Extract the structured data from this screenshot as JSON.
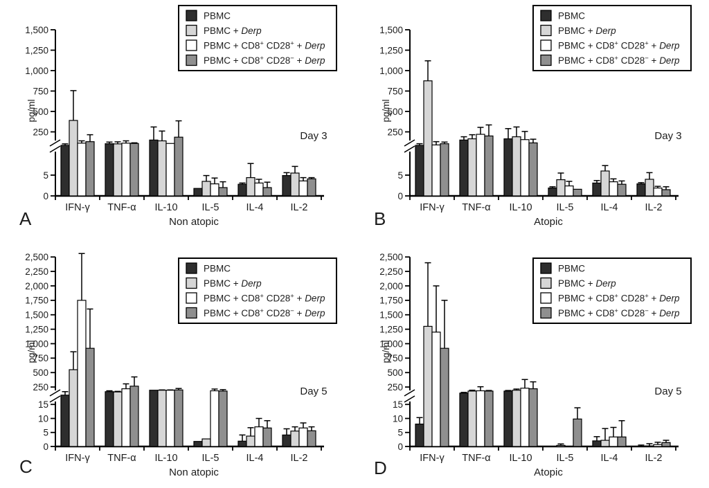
{
  "figure": {
    "background": "#ffffff",
    "bar_stroke": "#000000",
    "series_colors": [
      "#2e2e2e",
      "#d6d6d6",
      "#ffffff",
      "#8f8f8f"
    ],
    "legend": {
      "entries": [
        {
          "label": "PBMC",
          "parts": [
            {
              "text": "PBMC"
            }
          ]
        },
        {
          "label": "PBMC + Derp",
          "parts": [
            {
              "text": "PBMC + "
            },
            {
              "text": "Derp",
              "italic": true
            }
          ]
        },
        {
          "label": "PBMC + CD8+ CD28+ + Derp",
          "parts": [
            {
              "text": "PBMC + CD8"
            },
            {
              "text": "+",
              "sup": true
            },
            {
              "text": " CD28"
            },
            {
              "text": "+",
              "sup": true
            },
            {
              "text": " + "
            },
            {
              "text": "Derp",
              "italic": true
            }
          ]
        },
        {
          "label": "PBMC + CD8+ CD28− + Derp",
          "parts": [
            {
              "text": "PBMC + CD8"
            },
            {
              "text": "+",
              "sup": true
            },
            {
              "text": " CD28"
            },
            {
              "text": "−",
              "sup": true
            },
            {
              "text": " + "
            },
            {
              "text": "Derp",
              "italic": true
            }
          ]
        }
      ]
    }
  },
  "chart_data": [
    {
      "type": "bar",
      "panel_label": "A",
      "group_label": "Non atopic",
      "day_label": "Day 3",
      "ylabel": "pg/ml",
      "broken_axis": true,
      "categories": [
        "IFN-γ",
        "TNF-α",
        "IL-10",
        "IL-5",
        "IL-4",
        "IL-2"
      ],
      "axis": {
        "upper_ticks": [
          {
            "label": "1,500",
            "value": 1500
          },
          {
            "label": "1,250",
            "value": 1250
          },
          {
            "label": "1,000",
            "value": 1000
          },
          {
            "label": "750",
            "value": 750
          },
          {
            "label": "500",
            "value": 500
          },
          {
            "label": "250",
            "value": 250
          }
        ],
        "lower_ticks": [
          {
            "label": "5",
            "value": 5
          },
          {
            "label": "0",
            "value": 0
          }
        ],
        "upper_max": 1500,
        "lower_max": 7
      },
      "series": [
        {
          "name": "PBMC",
          "values": [
            85,
            105,
            150,
            1.8,
            2.8,
            4.9
          ],
          "errors": [
            18,
            20,
            160,
            0,
            0.3,
            0.7
          ]
        },
        {
          "name": "PBMC + Derp",
          "values": [
            390,
            103,
            140,
            3.5,
            4.4,
            5.5
          ],
          "errors": [
            365,
            25,
            120,
            1.4,
            3.4,
            1.6
          ]
        },
        {
          "name": "PBMC + CD8+ CD28+ + Derp",
          "values": [
            112,
            112,
            108,
            2.9,
            3.1,
            3.6
          ],
          "errors": [
            28,
            28,
            0,
            1.4,
            0.9,
            0.8
          ]
        },
        {
          "name": "PBMC + CD8+ CD28− + Derp",
          "values": [
            130,
            108,
            185,
            2.0,
            2.0,
            4.1
          ],
          "errors": [
            85,
            8,
            200,
            1.4,
            1.3,
            0.3
          ]
        }
      ]
    },
    {
      "type": "bar",
      "panel_label": "B",
      "group_label": "Atopic",
      "day_label": "Day 3",
      "ylabel": "pg/ml",
      "broken_axis": true,
      "categories": [
        "IFN-γ",
        "TNF-α",
        "IL-10",
        "IL-5",
        "IL-4",
        "IL-2"
      ],
      "axis": {
        "upper_ticks": [
          {
            "label": "1,500",
            "value": 1500
          },
          {
            "label": "1,250",
            "value": 1250
          },
          {
            "label": "1,000",
            "value": 1000
          },
          {
            "label": "750",
            "value": 750
          },
          {
            "label": "500",
            "value": 500
          },
          {
            "label": "250",
            "value": 250
          }
        ],
        "lower_ticks": [
          {
            "label": "5",
            "value": 5
          },
          {
            "label": "0",
            "value": 0
          }
        ],
        "upper_max": 1500,
        "lower_max": 7
      },
      "series": [
        {
          "name": "PBMC",
          "values": [
            85,
            150,
            165,
            1.9,
            3.1,
            2.9
          ],
          "errors": [
            20,
            40,
            125,
            0.3,
            0.6,
            0.3
          ]
        },
        {
          "name": "PBMC + Derp",
          "values": [
            875,
            165,
            190,
            3.9,
            6.0,
            4.0
          ],
          "errors": [
            245,
            50,
            120,
            1.6,
            1.3,
            1.6
          ]
        },
        {
          "name": "PBMC + CD8+ CD28+ + Derp",
          "values": [
            90,
            220,
            155,
            2.4,
            3.4,
            1.9
          ],
          "errors": [
            40,
            85,
            100,
            1.1,
            0.7,
            0.4
          ]
        },
        {
          "name": "PBMC + CD8+ CD28− + Derp",
          "values": [
            105,
            200,
            115,
            1.6,
            2.8,
            1.5
          ],
          "errors": [
            20,
            135,
            45,
            0,
            0.8,
            0.7
          ]
        }
      ]
    },
    {
      "type": "bar",
      "panel_label": "C",
      "group_label": "Non atopic",
      "day_label": "Day 5",
      "ylabel": "pg/ml",
      "broken_axis": true,
      "categories": [
        "IFN-γ",
        "TNF-α",
        "IL-10",
        "IL-5",
        "IL-4",
        "IL-2"
      ],
      "axis": {
        "upper_ticks": [
          {
            "label": "2,500",
            "value": 2500
          },
          {
            "label": "2,250",
            "value": 2250
          },
          {
            "label": "2,000",
            "value": 2000
          },
          {
            "label": "1,750",
            "value": 1750
          },
          {
            "label": "1,500",
            "value": 1500
          },
          {
            "label": "1,250",
            "value": 1250
          },
          {
            "label": "1,000",
            "value": 1000
          },
          {
            "label": "750",
            "value": 750
          },
          {
            "label": "500",
            "value": 500
          },
          {
            "label": "250",
            "value": 250
          }
        ],
        "lower_ticks": [
          {
            "label": "15",
            "value": 15
          },
          {
            "label": "10",
            "value": 10
          },
          {
            "label": "5",
            "value": 5
          },
          {
            "label": "0",
            "value": 0
          }
        ],
        "upper_max": 2500,
        "lower_max": 18
      },
      "series": [
        {
          "name": "PBMC",
          "values": [
            110,
            170,
            195,
            1.8,
            1.9,
            4.1
          ],
          "errors": [
            60,
            15,
            0,
            0,
            2.2,
            2.2
          ]
        },
        {
          "name": "PBMC + Derp",
          "values": [
            550,
            165,
            195,
            2.7,
            3.7,
            5.5
          ],
          "errors": [
            310,
            10,
            5,
            0,
            3.0,
            1.5
          ]
        },
        {
          "name": "PBMC + CD8+ CD28+ + Derp",
          "values": [
            1750,
            220,
            195,
            185,
            7.0,
            6.6
          ],
          "errors": [
            810,
            85,
            5,
            30,
            3.0,
            1.8
          ]
        },
        {
          "name": "PBMC + CD8+ CD28− + Derp",
          "values": [
            920,
            265,
            200,
            180,
            6.6,
            5.6
          ],
          "errors": [
            680,
            160,
            25,
            25,
            2.6,
            1.4
          ]
        }
      ]
    },
    {
      "type": "bar",
      "panel_label": "D",
      "group_label": "Atopic",
      "day_label": "Day 5",
      "ylabel": "pg/ml",
      "broken_axis": true,
      "categories": [
        "IFN-γ",
        "TNF-α",
        "IL-10",
        "IL-5",
        "IL-4",
        "IL-2"
      ],
      "axis": {
        "upper_ticks": [
          {
            "label": "2,500",
            "value": 2500
          },
          {
            "label": "2,250",
            "value": 2250
          },
          {
            "label": "2,000",
            "value": 2000
          },
          {
            "label": "1,750",
            "value": 1750
          },
          {
            "label": "1,500",
            "value": 1500
          },
          {
            "label": "1,250",
            "value": 1250
          },
          {
            "label": "1,000",
            "value": 1000
          },
          {
            "label": "750",
            "value": 750
          },
          {
            "label": "500",
            "value": 500
          },
          {
            "label": "250",
            "value": 250
          }
        ],
        "lower_ticks": [
          {
            "label": "15",
            "value": 15
          },
          {
            "label": "10",
            "value": 10
          },
          {
            "label": "5",
            "value": 5
          },
          {
            "label": "0",
            "value": 0
          }
        ],
        "upper_max": 2500,
        "lower_max": 18
      },
      "series": [
        {
          "name": "PBMC",
          "values": [
            8,
            145,
            180,
            0.1,
            2.0,
            0.1
          ],
          "errors": [
            2.3,
            12,
            10,
            0,
            1.5,
            0.4
          ]
        },
        {
          "name": "PBMC + Derp",
          "values": [
            1300,
            180,
            195,
            0.4,
            2.2,
            0.2
          ],
          "errors": [
            1100,
            15,
            20,
            0.5,
            4.2,
            0.8
          ]
        },
        {
          "name": "PBMC + CD8+ CD28+ + Derp",
          "values": [
            1200,
            185,
            230,
            0.1,
            3.4,
            0.7
          ],
          "errors": [
            800,
            70,
            150,
            0,
            3.4,
            0.8
          ]
        },
        {
          "name": "PBMC + CD8+ CD28− + Derp",
          "values": [
            920,
            180,
            220,
            9.8,
            3.4,
            1.4
          ],
          "errors": [
            830,
            10,
            120,
            4.0,
            5.8,
            0.8
          ]
        }
      ]
    }
  ]
}
